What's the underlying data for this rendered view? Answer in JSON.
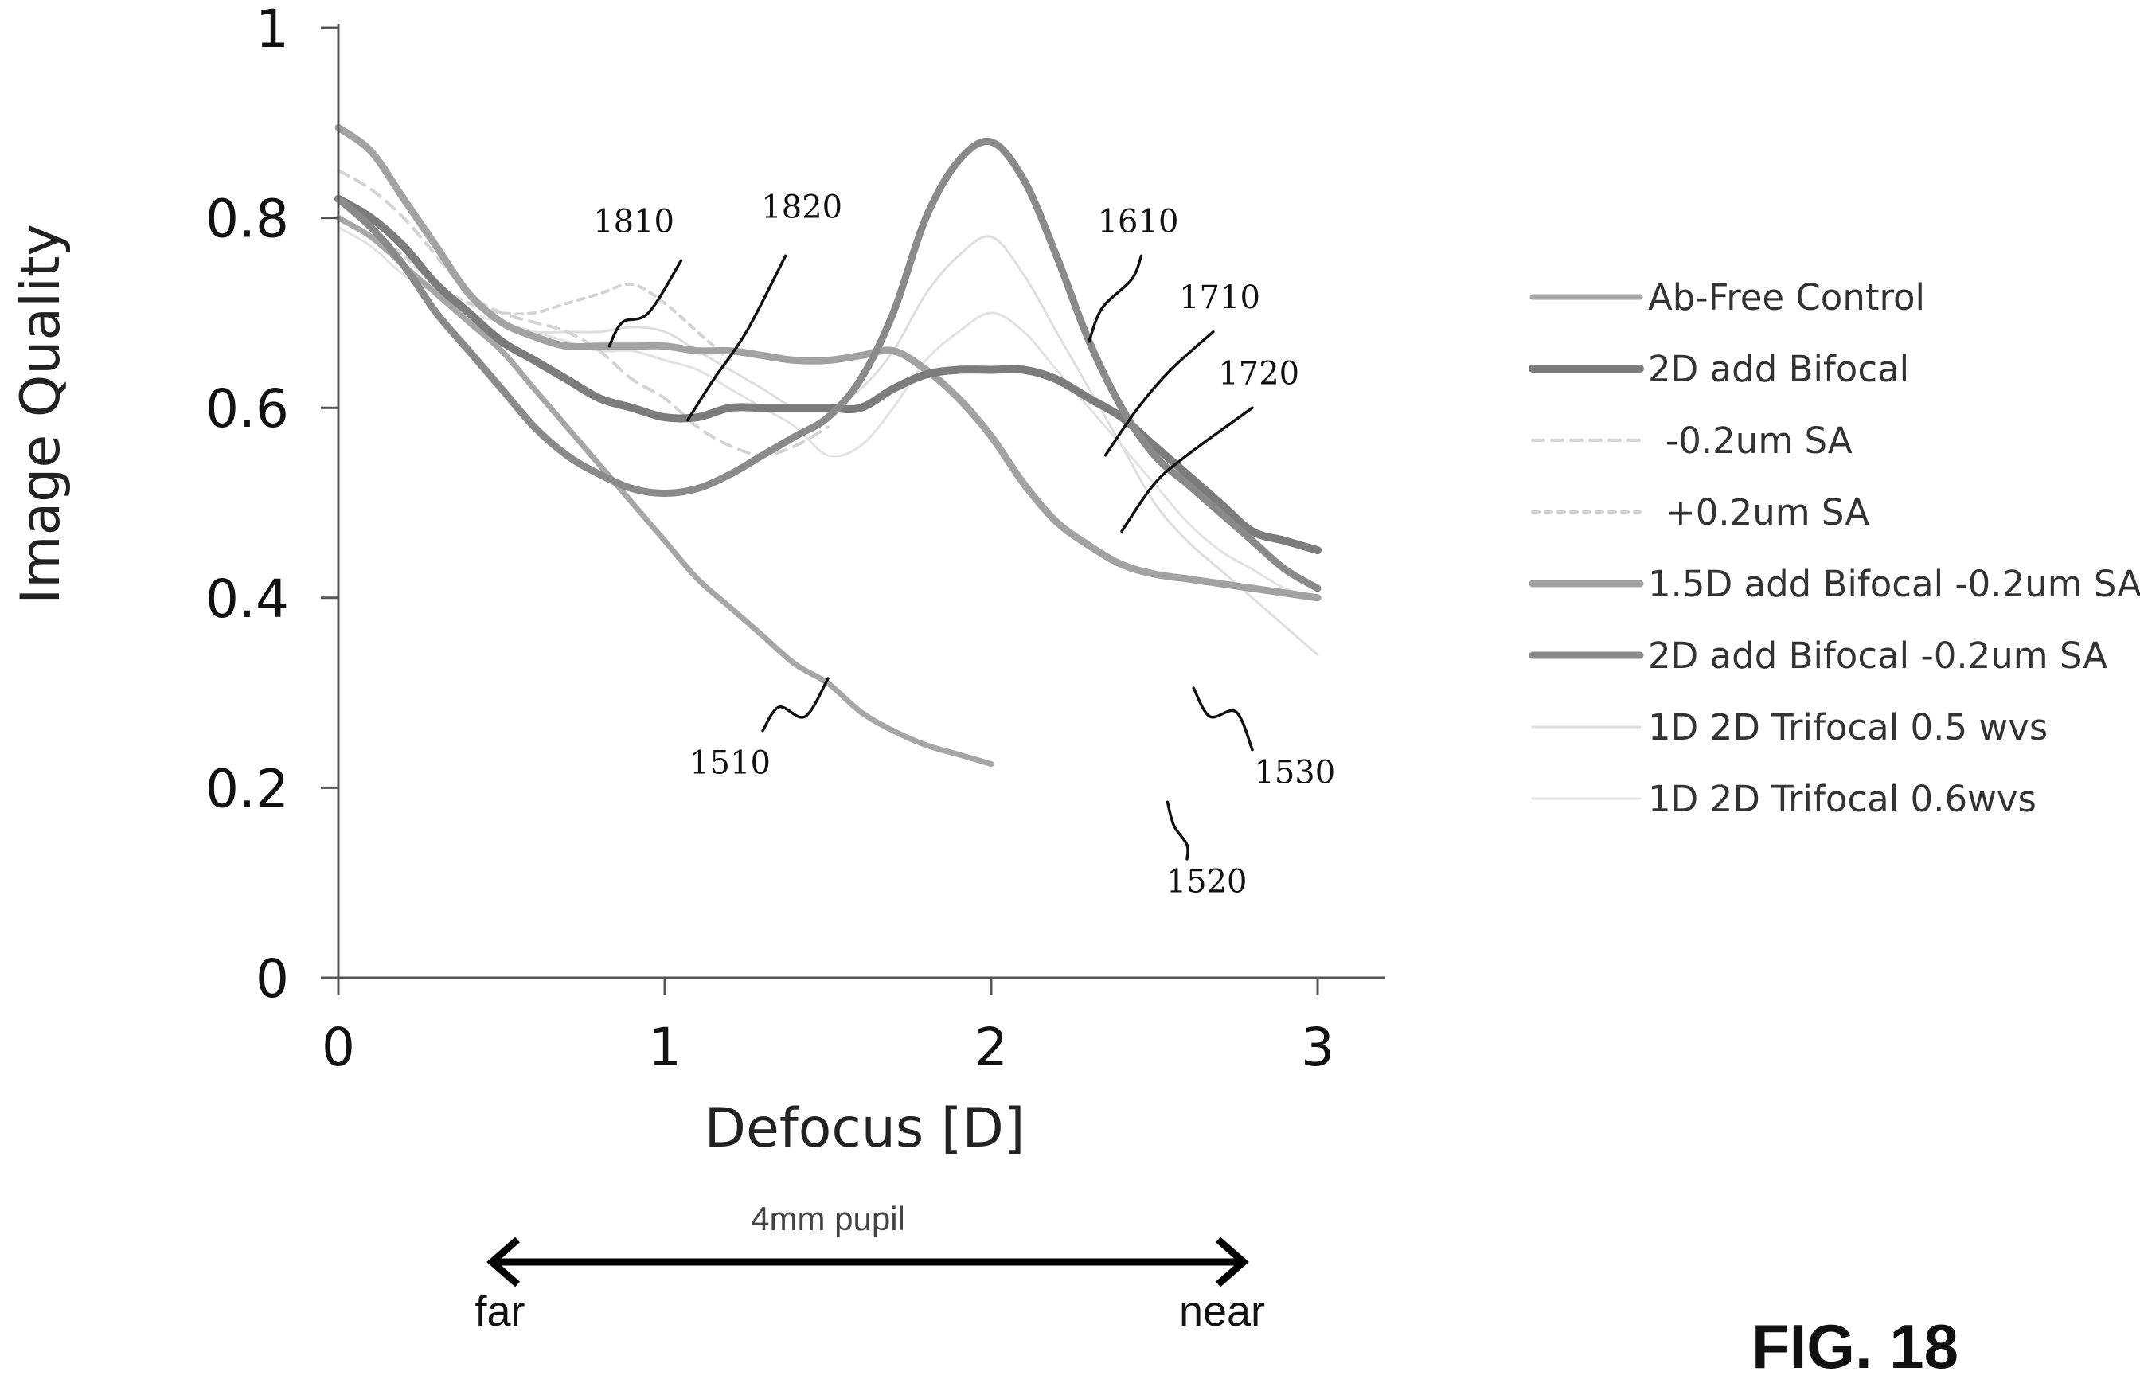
{
  "figure_label": "FIG. 18",
  "pupil_label": "4mm pupil",
  "far_label": "far",
  "near_label": "near",
  "chart_data": {
    "type": "line",
    "xlabel": "Defocus [D]",
    "ylabel": "Image Quality",
    "xlim": [
      0,
      3
    ],
    "ylim": [
      0,
      1
    ],
    "x_ticks": [
      "0",
      "1",
      "2",
      "3"
    ],
    "y_ticks": [
      "0",
      "0.2",
      "0.4",
      "0.6",
      "0.8",
      "1"
    ],
    "grid": false,
    "legend_position": "right",
    "series": [
      {
        "name": "Ab-Free Control",
        "color": "#a6a6a6",
        "width": 7,
        "dash": "",
        "x": [
          0,
          0.1,
          0.2,
          0.3,
          0.4,
          0.5,
          0.6,
          0.7,
          0.8,
          0.9,
          1.0,
          1.1,
          1.2,
          1.3,
          1.4,
          1.5,
          1.6,
          1.7,
          1.8,
          1.9,
          2.0
        ],
        "y": [
          0.8,
          0.78,
          0.75,
          0.72,
          0.69,
          0.66,
          0.62,
          0.58,
          0.54,
          0.5,
          0.46,
          0.42,
          0.39,
          0.36,
          0.33,
          0.31,
          0.28,
          0.26,
          0.245,
          0.235,
          0.225
        ]
      },
      {
        "name": "2D add Bifocal",
        "color": "#7c7c7c",
        "width": 10,
        "dash": "",
        "x": [
          0,
          0.1,
          0.2,
          0.3,
          0.4,
          0.5,
          0.6,
          0.7,
          0.8,
          0.9,
          1.0,
          1.1,
          1.2,
          1.3,
          1.4,
          1.5,
          1.6,
          1.7,
          1.8,
          1.9,
          2.0,
          2.1,
          2.2,
          2.3,
          2.4,
          2.5,
          2.6,
          2.7,
          2.8,
          2.9,
          3.0
        ],
        "y": [
          0.82,
          0.8,
          0.77,
          0.73,
          0.7,
          0.67,
          0.65,
          0.63,
          0.61,
          0.6,
          0.59,
          0.59,
          0.6,
          0.6,
          0.6,
          0.6,
          0.6,
          0.62,
          0.635,
          0.64,
          0.64,
          0.64,
          0.63,
          0.61,
          0.59,
          0.56,
          0.53,
          0.5,
          0.47,
          0.46,
          0.45
        ]
      },
      {
        "name": "-0.2um SA",
        "color": "#d4d4d4",
        "width": 4,
        "dash": "14 10",
        "x": [
          0,
          0.1,
          0.2,
          0.3,
          0.4,
          0.5,
          0.6,
          0.7,
          0.8,
          0.9,
          1.0,
          1.1,
          1.2,
          1.3,
          1.4,
          1.5
        ],
        "y": [
          0.85,
          0.83,
          0.8,
          0.76,
          0.72,
          0.7,
          0.69,
          0.68,
          0.66,
          0.63,
          0.61,
          0.58,
          0.56,
          0.55,
          0.56,
          0.58
        ]
      },
      {
        "name": "+0.2um SA",
        "color": "#d4d4d4",
        "width": 4,
        "dash": "8 8",
        "x": [
          0,
          0.1,
          0.2,
          0.3,
          0.4,
          0.5,
          0.6,
          0.7,
          0.8,
          0.9,
          1.0,
          1.1,
          1.2
        ],
        "y": [
          0.82,
          0.79,
          0.76,
          0.73,
          0.71,
          0.7,
          0.7,
          0.71,
          0.72,
          0.73,
          0.71,
          0.68,
          0.65
        ]
      },
      {
        "name": "1.5D add Bifocal -0.2um SA",
        "color": "#a2a2a2",
        "width": 9,
        "dash": "",
        "x": [
          0,
          0.1,
          0.2,
          0.3,
          0.4,
          0.5,
          0.6,
          0.7,
          0.8,
          0.9,
          1.0,
          1.1,
          1.2,
          1.3,
          1.4,
          1.5,
          1.6,
          1.7,
          1.8,
          1.9,
          2.0,
          2.1,
          2.2,
          2.3,
          2.4,
          2.5,
          2.6,
          2.7,
          2.8,
          2.9,
          3.0
        ],
        "y": [
          0.895,
          0.87,
          0.82,
          0.77,
          0.72,
          0.69,
          0.675,
          0.665,
          0.665,
          0.665,
          0.665,
          0.66,
          0.66,
          0.655,
          0.65,
          0.65,
          0.655,
          0.66,
          0.64,
          0.61,
          0.57,
          0.52,
          0.48,
          0.455,
          0.435,
          0.425,
          0.42,
          0.415,
          0.41,
          0.405,
          0.4
        ]
      },
      {
        "name": "2D add Bifocal -0.2um SA",
        "color": "#8a8a8a",
        "width": 9,
        "dash": "",
        "x": [
          0,
          0.1,
          0.2,
          0.3,
          0.4,
          0.5,
          0.6,
          0.7,
          0.8,
          0.9,
          1.0,
          1.1,
          1.2,
          1.3,
          1.4,
          1.5,
          1.6,
          1.7,
          1.8,
          1.9,
          2.0,
          2.1,
          2.2,
          2.3,
          2.4,
          2.5,
          2.6,
          2.7,
          2.8,
          2.9,
          3.0
        ],
        "y": [
          0.82,
          0.79,
          0.75,
          0.7,
          0.66,
          0.62,
          0.58,
          0.55,
          0.53,
          0.515,
          0.51,
          0.515,
          0.53,
          0.55,
          0.57,
          0.59,
          0.63,
          0.7,
          0.8,
          0.86,
          0.88,
          0.84,
          0.76,
          0.67,
          0.6,
          0.55,
          0.52,
          0.49,
          0.46,
          0.43,
          0.41
        ]
      },
      {
        "name": "1D 2D Trifocal 0.5 wvs",
        "color": "#dedede",
        "width": 3,
        "dash": "",
        "x": [
          0,
          0.1,
          0.2,
          0.3,
          0.4,
          0.5,
          0.6,
          0.7,
          0.8,
          0.9,
          1.0,
          1.1,
          1.2,
          1.3,
          1.4,
          1.5,
          1.6,
          1.7,
          1.8,
          1.9,
          2.0,
          2.1,
          2.2,
          2.3,
          2.4,
          2.5,
          2.6,
          2.7,
          2.8,
          2.9,
          3.0
        ],
        "y": [
          0.8,
          0.78,
          0.75,
          0.72,
          0.7,
          0.69,
          0.68,
          0.68,
          0.68,
          0.685,
          0.68,
          0.66,
          0.64,
          0.62,
          0.6,
          0.6,
          0.62,
          0.66,
          0.72,
          0.76,
          0.78,
          0.74,
          0.68,
          0.62,
          0.56,
          0.5,
          0.46,
          0.43,
          0.4,
          0.37,
          0.34
        ]
      },
      {
        "name": "1D 2D Trifocal 0.6wvs",
        "color": "#e2e2e2",
        "width": 3,
        "dash": "",
        "x": [
          0,
          0.1,
          0.2,
          0.3,
          0.4,
          0.5,
          0.6,
          0.7,
          0.8,
          0.9,
          1.0,
          1.1,
          1.2,
          1.3,
          1.4,
          1.5,
          1.6,
          1.7,
          1.8,
          1.9,
          2.0,
          2.1,
          2.2,
          2.3,
          2.4,
          2.5,
          2.6,
          2.7,
          2.8,
          2.9,
          3.0
        ],
        "y": [
          0.79,
          0.77,
          0.74,
          0.72,
          0.7,
          0.69,
          0.68,
          0.67,
          0.66,
          0.66,
          0.65,
          0.64,
          0.62,
          0.6,
          0.58,
          0.55,
          0.56,
          0.6,
          0.65,
          0.68,
          0.7,
          0.68,
          0.64,
          0.6,
          0.56,
          0.52,
          0.48,
          0.45,
          0.43,
          0.41,
          0.4
        ]
      }
    ],
    "annotations": [
      {
        "label": "1810",
        "text_x": 0.905,
        "text_y": 0.785,
        "leader": [
          [
            0.83,
            0.665
          ],
          [
            0.87,
            0.69
          ],
          [
            0.95,
            0.7
          ],
          [
            1.05,
            0.755
          ]
        ]
      },
      {
        "label": "1820",
        "text_x": 1.42,
        "text_y": 0.8,
        "leader": [
          [
            1.07,
            0.587
          ],
          [
            1.15,
            0.63
          ],
          [
            1.25,
            0.68
          ],
          [
            1.37,
            0.76
          ]
        ]
      },
      {
        "label": "1610",
        "text_x": 2.45,
        "text_y": 0.785,
        "leader": [
          [
            2.3,
            0.67
          ],
          [
            2.34,
            0.705
          ],
          [
            2.43,
            0.735
          ],
          [
            2.46,
            0.76
          ]
        ]
      },
      {
        "label": "1710",
        "text_x": 2.7,
        "text_y": 0.705,
        "leader": [
          [
            2.35,
            0.55
          ],
          [
            2.45,
            0.6
          ],
          [
            2.55,
            0.64
          ],
          [
            2.68,
            0.68
          ]
        ]
      },
      {
        "label": "1720",
        "text_x": 2.82,
        "text_y": 0.625,
        "leader": [
          [
            2.4,
            0.47
          ],
          [
            2.5,
            0.52
          ],
          [
            2.6,
            0.55
          ],
          [
            2.8,
            0.6
          ]
        ]
      },
      {
        "label": "1510",
        "text_x": 1.2,
        "text_y": 0.215,
        "leader": [
          [
            1.5,
            0.315
          ],
          [
            1.43,
            0.275
          ],
          [
            1.35,
            0.285
          ],
          [
            1.3,
            0.26
          ]
        ]
      },
      {
        "label": "1530",
        "text_x": 2.93,
        "text_y": 0.205,
        "leader": [
          [
            2.62,
            0.305
          ],
          [
            2.67,
            0.275
          ],
          [
            2.75,
            0.28
          ],
          [
            2.8,
            0.24
          ]
        ]
      },
      {
        "label": "1520",
        "text_x": 2.66,
        "text_y": 0.09,
        "leader": [
          [
            2.54,
            0.185
          ],
          [
            2.56,
            0.16
          ],
          [
            2.6,
            0.14
          ],
          [
            2.6,
            0.125
          ]
        ]
      }
    ]
  }
}
